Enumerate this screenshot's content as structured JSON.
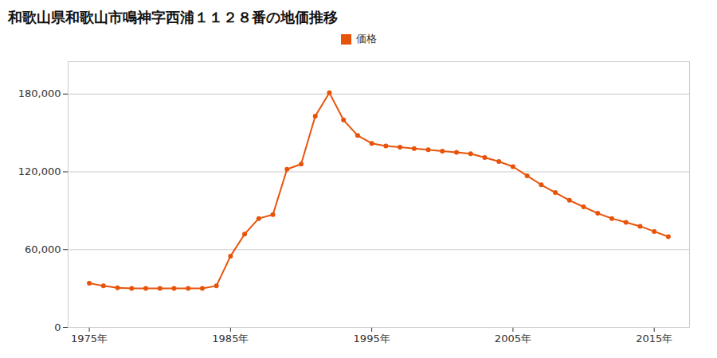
{
  "chart_data": {
    "type": "line",
    "title": "和歌山県和歌山市鳴神字西浦１１２８番の地価推移",
    "x": [
      1975,
      1976,
      1977,
      1978,
      1979,
      1980,
      1981,
      1982,
      1983,
      1984,
      1985,
      1986,
      1987,
      1988,
      1989,
      1990,
      1991,
      1992,
      1993,
      1994,
      1995,
      1996,
      1997,
      1998,
      1999,
      2000,
      2001,
      2002,
      2003,
      2004,
      2005,
      2006,
      2007,
      2008,
      2009,
      2010,
      2011,
      2012,
      2013,
      2014,
      2015,
      2016
    ],
    "series": [
      {
        "name": "価格",
        "color": "#e8530a",
        "marker": "circle",
        "values": [
          34000,
          32000,
          30500,
          30000,
          30000,
          30000,
          30000,
          30000,
          30000,
          32000,
          55000,
          72000,
          84000,
          87000,
          122000,
          126000,
          163000,
          181000,
          160000,
          148000,
          142000,
          140000,
          139000,
          138000,
          137000,
          136000,
          135000,
          134000,
          131000,
          128000,
          124000,
          117000,
          110000,
          104000,
          98000,
          93000,
          88000,
          84000,
          81000,
          78000,
          74000,
          70000
        ]
      }
    ],
    "xlim": [
      1973.5,
      2017.5
    ],
    "xticks": [
      {
        "value": 1975,
        "label": "1975年"
      },
      {
        "value": 1985,
        "label": "1985年"
      },
      {
        "value": 1995,
        "label": "1995年"
      },
      {
        "value": 2005,
        "label": "2005年"
      },
      {
        "value": 2015,
        "label": "2015年"
      }
    ],
    "ylim": [
      0,
      205000
    ],
    "yticks": [
      0,
      {
        "value": 60000,
        "label": "60,000"
      },
      {
        "value": 120000,
        "label": "120,000"
      },
      {
        "value": 180000,
        "label": "180,000"
      }
    ],
    "grid": true,
    "legend": "top"
  }
}
